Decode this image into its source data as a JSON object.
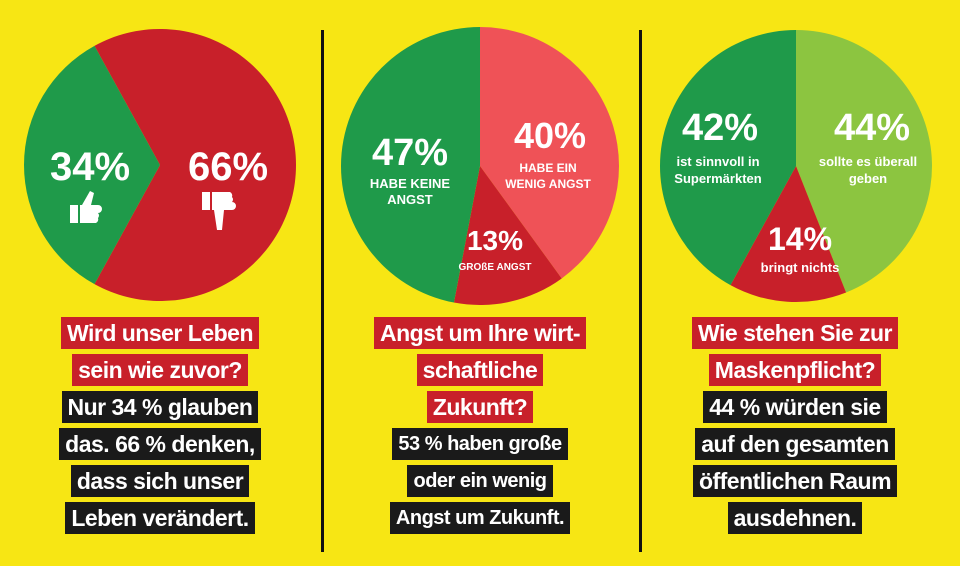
{
  "colors": {
    "background": "#f7e614",
    "green": "#1f9a4a",
    "red": "#c8202a",
    "light_red": "#ef5257",
    "light_green": "#8cc540",
    "dark_red": "#c8202a"
  },
  "chart_data": [
    {
      "type": "pie",
      "slices": [
        {
          "label": "34%",
          "value": 34,
          "color": "#1f9a4a",
          "icon": "thumbs-up-icon"
        },
        {
          "label": "66%",
          "value": 66,
          "color": "#c8202a",
          "icon": "thumbs-down-icon"
        }
      ],
      "question": [
        "Wird unser Leben",
        "sein wie zuvor?"
      ],
      "answer": [
        "Nur 34 % glauben",
        "das. 66 % denken,",
        "dass sich unser",
        "Leben verändert."
      ]
    },
    {
      "type": "pie",
      "slices": [
        {
          "label": "47%",
          "sub": [
            "HABE KEINE",
            "ANGST"
          ],
          "value": 47,
          "color": "#1f9a4a"
        },
        {
          "label": "40%",
          "sub": [
            "HABE EIN",
            "WENIG ANGST"
          ],
          "value": 40,
          "color": "#ef5257"
        },
        {
          "label": "13%",
          "sub": [
            "GROßE ANGST"
          ],
          "value": 13,
          "color": "#c8202a"
        }
      ],
      "question": [
        "Angst um Ihre wirt-",
        "schaftliche",
        "Zukunft?"
      ],
      "answer": [
        "53 % haben große",
        "oder ein wenig",
        "Angst um Zukunft."
      ]
    },
    {
      "type": "pie",
      "slices": [
        {
          "label": "42%",
          "sub": [
            "ist sinnvoll in",
            "Supermärkten"
          ],
          "value": 42,
          "color": "#1f9a4a"
        },
        {
          "label": "44%",
          "sub": [
            "sollte es überall",
            "geben"
          ],
          "value": 44,
          "color": "#8cc540"
        },
        {
          "label": "14%",
          "sub": [
            "bringt nichts"
          ],
          "value": 14,
          "color": "#c8202a"
        }
      ],
      "question": [
        "Wie stehen Sie zur",
        "Maskenpflicht?"
      ],
      "answer": [
        "44 % würden sie",
        "auf den gesamten",
        "öffentlichen Raum",
        "ausdehnen."
      ]
    }
  ]
}
